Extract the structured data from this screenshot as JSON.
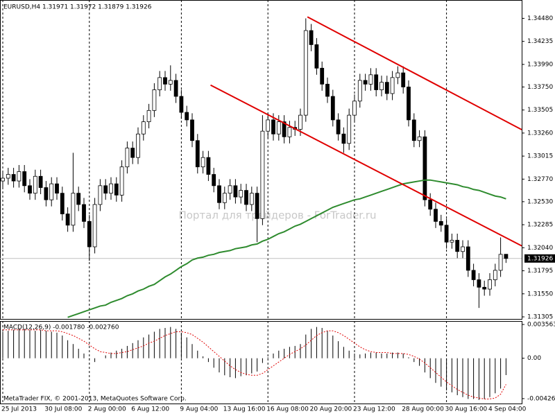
{
  "chart_data": [
    {
      "type": "candlestick",
      "title": "EURUSD,H4  1.31971 1.31972 1.31879 1.31926",
      "watermark": "Портал для трейдеров - ForTrader.ru",
      "ylim": [
        1.31283,
        1.34675
      ],
      "yticks": [
        {
          "value": 1.3448,
          "label": "1.34480"
        },
        {
          "value": 1.34235,
          "label": "1.34235"
        },
        {
          "value": 1.3399,
          "label": "1.33990"
        },
        {
          "value": 1.3375,
          "label": "1.33750"
        },
        {
          "value": 1.33505,
          "label": "1.33505"
        },
        {
          "value": 1.3326,
          "label": "1.33260"
        },
        {
          "value": 1.33015,
          "label": "1.33015"
        },
        {
          "value": 1.3277,
          "label": "1.32770"
        },
        {
          "value": 1.3253,
          "label": "1.32530"
        },
        {
          "value": 1.32285,
          "label": "1.32285"
        },
        {
          "value": 1.3204,
          "label": "1.32040"
        },
        {
          "value": 1.31795,
          "label": "1.31795"
        },
        {
          "value": 1.3155,
          "label": "1.31550"
        },
        {
          "value": 1.31305,
          "label": "1.31305"
        }
      ],
      "xticks": [
        {
          "value": 0,
          "label": "25 Jul 2013"
        },
        {
          "value": 8,
          "label": "30 Jul 08:00"
        },
        {
          "value": 16,
          "label": "2 Aug 00:00"
        },
        {
          "value": 24,
          "label": "6 Aug 12:00"
        },
        {
          "value": 33,
          "label": "9 Aug 04:00"
        },
        {
          "value": 41,
          "label": "13 Aug 16:00"
        },
        {
          "value": 49,
          "label": "16 Aug 08:00"
        },
        {
          "value": 57,
          "label": "20 Aug 20:00"
        },
        {
          "value": 65,
          "label": "23 Aug 12:00"
        },
        {
          "value": 74,
          "label": "28 Aug 00:00"
        },
        {
          "value": 82,
          "label": "30 Aug 16:00"
        },
        {
          "value": 90,
          "label": "4 Sep 04:00"
        }
      ],
      "grid": true,
      "up_color": "#ffffff",
      "down_color": "#000000",
      "open": [
        1.3275,
        1.3278,
        1.3282,
        1.3275,
        1.3285,
        1.327,
        1.3262,
        1.328,
        1.3268,
        1.3255,
        1.3272,
        1.3262,
        1.324,
        1.3228,
        1.3262,
        1.325,
        1.3232,
        1.3205,
        1.325,
        1.327,
        1.3262,
        1.3272,
        1.326,
        1.329,
        1.331,
        1.33,
        1.3325,
        1.3338,
        1.335,
        1.3372,
        1.3385,
        1.3378,
        1.3382,
        1.3365,
        1.3348,
        1.334,
        1.3318,
        1.329,
        1.33,
        1.3282,
        1.327,
        1.3252,
        1.3262,
        1.327,
        1.3258,
        1.3265,
        1.325,
        1.3262,
        1.3235,
        1.3328,
        1.334,
        1.3325,
        1.3338,
        1.3322,
        1.3332,
        1.333,
        1.3345,
        1.3435,
        1.342,
        1.3395,
        1.3378,
        1.3365,
        1.334,
        1.3325,
        1.3315,
        1.3345,
        1.336,
        1.3382,
        1.3378,
        1.3388,
        1.3372,
        1.338,
        1.3368,
        1.3385,
        1.339,
        1.3375,
        1.334,
        1.3318,
        1.3322,
        1.3255,
        1.3245,
        1.3232,
        1.3228,
        1.321,
        1.3212,
        1.32,
        1.3205,
        1.318,
        1.317,
        1.3162,
        1.316,
        1.317,
        1.318,
        1.31971
      ],
      "high": [
        1.3285,
        1.3289,
        1.3289,
        1.3292,
        1.3292,
        1.3277,
        1.3287,
        1.3287,
        1.3275,
        1.3279,
        1.3279,
        1.3269,
        1.3247,
        1.3305,
        1.3269,
        1.3257,
        1.3239,
        1.3257,
        1.3277,
        1.3277,
        1.3279,
        1.3279,
        1.3297,
        1.3317,
        1.3317,
        1.3332,
        1.3345,
        1.3357,
        1.3379,
        1.3392,
        1.3392,
        1.3398,
        1.3389,
        1.3372,
        1.3355,
        1.3347,
        1.3325,
        1.3307,
        1.3307,
        1.3289,
        1.3277,
        1.3269,
        1.3277,
        1.3277,
        1.3272,
        1.3272,
        1.3269,
        1.3269,
        1.3345,
        1.3347,
        1.3347,
        1.3345,
        1.3345,
        1.3339,
        1.3339,
        1.3352,
        1.3448,
        1.3442,
        1.3427,
        1.3402,
        1.3385,
        1.3372,
        1.3347,
        1.3332,
        1.3352,
        1.3367,
        1.3389,
        1.3389,
        1.3395,
        1.3395,
        1.3387,
        1.3387,
        1.3392,
        1.3397,
        1.3397,
        1.3382,
        1.3347,
        1.3329,
        1.3329,
        1.3262,
        1.3252,
        1.3239,
        1.3235,
        1.3219,
        1.3219,
        1.3212,
        1.3212,
        1.3187,
        1.3177,
        1.3169,
        1.3177,
        1.3187,
        1.3215,
        1.31972
      ],
      "low": [
        1.3268,
        1.3271,
        1.3268,
        1.3268,
        1.3263,
        1.3255,
        1.3255,
        1.3261,
        1.3248,
        1.3248,
        1.3255,
        1.3233,
        1.3221,
        1.3221,
        1.3243,
        1.3225,
        1.319,
        1.3198,
        1.3243,
        1.3255,
        1.3255,
        1.3253,
        1.3253,
        1.3283,
        1.3293,
        1.3293,
        1.3318,
        1.3331,
        1.3343,
        1.3365,
        1.3371,
        1.3371,
        1.3358,
        1.3341,
        1.3333,
        1.3311,
        1.3283,
        1.3283,
        1.3275,
        1.3263,
        1.3245,
        1.3245,
        1.3255,
        1.3251,
        1.3251,
        1.3243,
        1.3243,
        1.321,
        1.3228,
        1.3321,
        1.3318,
        1.3318,
        1.3315,
        1.3315,
        1.3323,
        1.3323,
        1.3338,
        1.3413,
        1.3388,
        1.3371,
        1.3358,
        1.3333,
        1.3318,
        1.3305,
        1.3308,
        1.3338,
        1.3353,
        1.3371,
        1.3371,
        1.3365,
        1.3365,
        1.3361,
        1.3361,
        1.3378,
        1.3368,
        1.3333,
        1.3311,
        1.3311,
        1.3248,
        1.3238,
        1.3225,
        1.3221,
        1.3203,
        1.3203,
        1.3193,
        1.3193,
        1.3173,
        1.3163,
        1.314,
        1.3153,
        1.3153,
        1.3163,
        1.3173,
        1.31879
      ],
      "close": [
        1.3278,
        1.3282,
        1.3275,
        1.3285,
        1.327,
        1.3262,
        1.328,
        1.3268,
        1.3255,
        1.3272,
        1.3262,
        1.324,
        1.3228,
        1.3262,
        1.325,
        1.3232,
        1.3205,
        1.325,
        1.327,
        1.3262,
        1.3272,
        1.326,
        1.329,
        1.331,
        1.33,
        1.3325,
        1.3338,
        1.335,
        1.3372,
        1.3385,
        1.3378,
        1.3382,
        1.3365,
        1.3348,
        1.334,
        1.3318,
        1.329,
        1.33,
        1.3282,
        1.327,
        1.3252,
        1.3262,
        1.327,
        1.3258,
        1.3265,
        1.325,
        1.3262,
        1.3235,
        1.3328,
        1.334,
        1.3325,
        1.3338,
        1.3322,
        1.3332,
        1.333,
        1.3345,
        1.3435,
        1.342,
        1.3395,
        1.3378,
        1.3365,
        1.334,
        1.3325,
        1.3315,
        1.3345,
        1.336,
        1.3382,
        1.3378,
        1.3388,
        1.3372,
        1.338,
        1.3368,
        1.3385,
        1.339,
        1.3375,
        1.334,
        1.3318,
        1.3322,
        1.3255,
        1.3245,
        1.3232,
        1.3228,
        1.321,
        1.3212,
        1.32,
        1.3205,
        1.318,
        1.317,
        1.3162,
        1.316,
        1.317,
        1.318,
        1.3197,
        1.31926
      ],
      "ma": {
        "color": "#2e8b2e",
        "values": [
          null,
          null,
          null,
          null,
          null,
          null,
          null,
          null,
          null,
          null,
          null,
          null,
          1.313,
          1.3132,
          1.3134,
          1.3136,
          1.3138,
          1.314,
          1.3142,
          1.3143,
          1.3146,
          1.3148,
          1.315,
          1.3153,
          1.3155,
          1.3158,
          1.316,
          1.3163,
          1.3165,
          1.3169,
          1.3173,
          1.3176,
          1.318,
          1.3184,
          1.3187,
          1.3191,
          1.3193,
          1.3194,
          1.3196,
          1.3197,
          1.3199,
          1.32,
          1.3201,
          1.3203,
          1.3204,
          1.3205,
          1.3207,
          1.3208,
          1.3211,
          1.3213,
          1.3216,
          1.3219,
          1.3221,
          1.3224,
          1.3227,
          1.3229,
          1.3232,
          1.3235,
          1.3238,
          1.3241,
          1.3244,
          1.3247,
          1.3249,
          1.3251,
          1.3253,
          1.3255,
          1.3256,
          1.3258,
          1.326,
          1.3262,
          1.3264,
          1.3266,
          1.3268,
          1.327,
          1.3272,
          1.3273,
          1.3274,
          1.3275,
          1.3276,
          1.3276,
          1.3275,
          1.3274,
          1.3273,
          1.3272,
          1.3271,
          1.3269,
          1.3268,
          1.3266,
          1.3265,
          1.3263,
          1.3261,
          1.3259,
          1.3258,
          1.3256
        ]
      },
      "trendlines": [
        {
          "color": "#e00000",
          "x": [
            38.4,
            95.9
          ],
          "y": [
            1.3377,
            1.3206
          ]
        },
        {
          "color": "#e00000",
          "x": [
            56.3,
            95.9
          ],
          "y": [
            1.34495,
            1.33296
          ]
        }
      ]
    },
    {
      "type": "macd",
      "indicator_label": "MACD(12,26,9) -0.001780 -0.002760",
      "credit": "MetaTrader FIX, © 2001-2013, MetaQuotes Software Corp.",
      "ylim": [
        -0.00478,
        0.00393
      ],
      "yticks": [
        0.003563,
        {
          "value": 0,
          "label": "0.00"
        },
        -0.004263
      ],
      "color": "#000000",
      "signal_color": "#e00000",
      "main": [
        0.0028,
        0.0029,
        0.003,
        0.0031,
        0.0031,
        0.003,
        0.0029,
        0.003,
        0.0029,
        0.0028,
        0.0027,
        0.0024,
        0.0019,
        0.0015,
        0.001,
        0.0005,
        -0.0001,
        -0.0004,
        0,
        0.0003,
        0.0006,
        0.0008,
        0.001,
        0.0013,
        0.0016,
        0.0019,
        0.0022,
        0.0025,
        0.0028,
        0.0031,
        0.0032,
        0.0033,
        0.0031,
        0.0027,
        0.0022,
        0.0015,
        0.0008,
        0.0002,
        -0.0004,
        -0.001,
        -0.0015,
        -0.0018,
        -0.002,
        -0.0021,
        -0.0019,
        -0.0018,
        -0.0016,
        -0.0014,
        -0.0005,
        0.0001,
        0.0005,
        0.0008,
        0.001,
        0.0012,
        0.0013,
        0.0015,
        0.0025,
        0.0031,
        0.0033,
        0.0032,
        0.0029,
        0.0024,
        0.0018,
        0.0012,
        0.0008,
        0.0005,
        0.0004,
        0.0005,
        0.0006,
        0.0006,
        0.0005,
        0.0005,
        0.0006,
        0.0006,
        0.0005,
        0.0001,
        -0.0004,
        -0.0008,
        -0.0015,
        -0.0021,
        -0.0026,
        -0.003,
        -0.0034,
        -0.0036,
        -0.0039,
        -0.0041,
        -0.0043,
        -0.0043,
        -0.0044,
        -0.0043,
        -0.0041,
        -0.0037,
        -0.0032,
        -0.00178
      ],
      "signal": [
        0.003,
        0.003,
        0.003,
        0.003,
        0.003,
        0.003,
        0.003,
        0.003,
        0.0029,
        0.0029,
        0.0029,
        0.0028,
        0.0026,
        0.0024,
        0.0021,
        0.0018,
        0.0014,
        0.001,
        0.0007,
        0.0006,
        0.0005,
        0.0005,
        0.0006,
        0.0007,
        0.0009,
        0.0011,
        0.0013,
        0.0016,
        0.0018,
        0.0021,
        0.0024,
        0.0026,
        0.0028,
        0.0028,
        0.0027,
        0.0025,
        0.0021,
        0.0017,
        0.0012,
        0.0007,
        0.0002,
        -0.0003,
        -0.0008,
        -0.0012,
        -0.0015,
        -0.0017,
        -0.0018,
        -0.0018,
        -0.0016,
        -0.0012,
        -0.0008,
        -0.0004,
        0,
        0.0004,
        0.0007,
        0.001,
        0.0014,
        0.0019,
        0.0024,
        0.0027,
        0.0029,
        0.0029,
        0.0027,
        0.0024,
        0.002,
        0.0016,
        0.0012,
        0.0009,
        0.0007,
        0.0006,
        0.0006,
        0.0006,
        0.0005,
        0.0005,
        0.0005,
        0.0004,
        0.0002,
        -0.0001,
        -0.0005,
        -0.001,
        -0.0015,
        -0.002,
        -0.0025,
        -0.0029,
        -0.0033,
        -0.0036,
        -0.0039,
        -0.0041,
        -0.0042,
        -0.0043,
        -0.0043,
        -0.0042,
        -0.0038,
        -0.00276
      ]
    }
  ]
}
